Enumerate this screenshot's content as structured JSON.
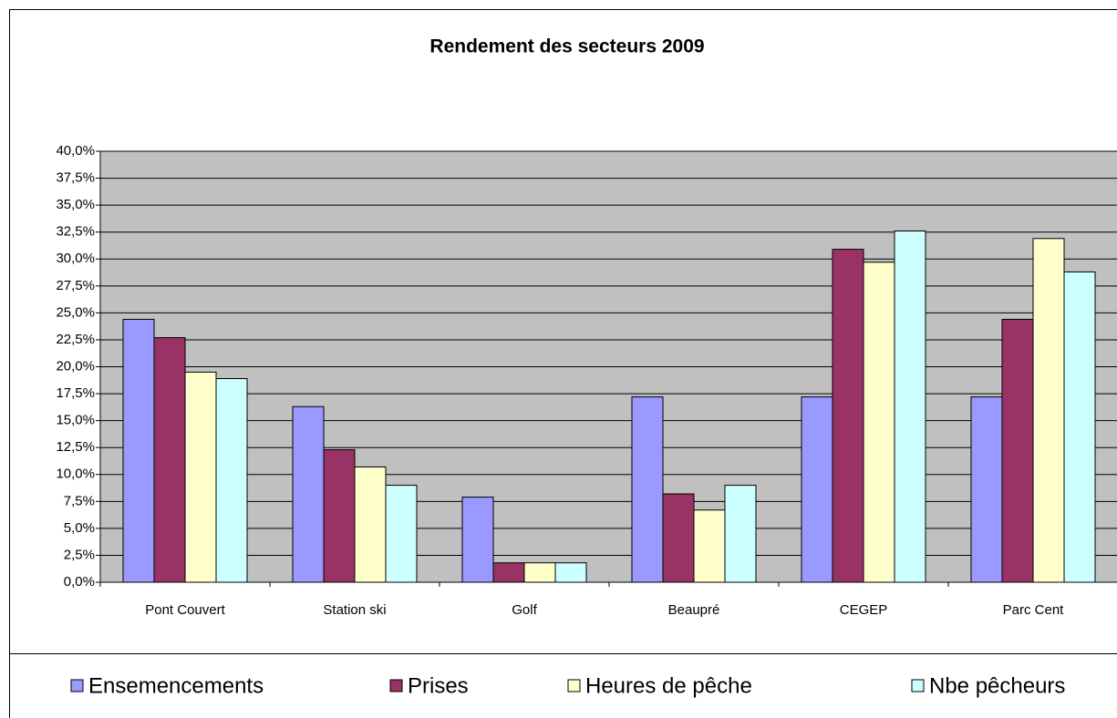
{
  "chart_data": {
    "type": "bar",
    "title": "Rendement des secteurs 2009",
    "categories": [
      "Pont Couvert",
      "Station ski",
      "Golf",
      "Beaupré",
      "CEGEP",
      "Parc Cent"
    ],
    "series": [
      {
        "name": "Ensemencements",
        "color": "#9999ff",
        "values": [
          24.4,
          16.3,
          7.9,
          17.2,
          17.2,
          17.2
        ]
      },
      {
        "name": "Prises",
        "color": "#993366",
        "values": [
          22.7,
          12.3,
          1.8,
          8.2,
          30.9,
          24.4
        ]
      },
      {
        "name": "Heures de pêche",
        "color": "#ffffcc",
        "values": [
          19.5,
          10.7,
          1.8,
          6.7,
          29.7,
          31.9
        ]
      },
      {
        "name": "Nbe pêcheurs",
        "color": "#ccffff",
        "values": [
          18.9,
          9.0,
          1.8,
          9.0,
          32.6,
          28.8
        ]
      }
    ],
    "ylim": [
      0,
      40
    ],
    "yticks": [
      {
        "value": 0,
        "label": "0,0%"
      },
      {
        "value": 2.5,
        "label": "2,5%"
      },
      {
        "value": 5,
        "label": "5,0%"
      },
      {
        "value": 7.5,
        "label": "7,5%"
      },
      {
        "value": 10,
        "label": "10,0%"
      },
      {
        "value": 12.5,
        "label": "12,5%"
      },
      {
        "value": 15,
        "label": "15,0%"
      },
      {
        "value": 17.5,
        "label": "17,5%"
      },
      {
        "value": 20,
        "label": "20,0%"
      },
      {
        "value": 22.5,
        "label": "22,5%"
      },
      {
        "value": 25,
        "label": "25,0%"
      },
      {
        "value": 27.5,
        "label": "27,5%"
      },
      {
        "value": 30,
        "label": "30,0%"
      },
      {
        "value": 32.5,
        "label": "32,5%"
      },
      {
        "value": 35,
        "label": "35,0%"
      },
      {
        "value": 37.5,
        "label": "37,5%"
      },
      {
        "value": 40,
        "label": "40,0%"
      }
    ],
    "grid": true,
    "plot_background": "#c0c0c0",
    "legend": "bottom"
  }
}
